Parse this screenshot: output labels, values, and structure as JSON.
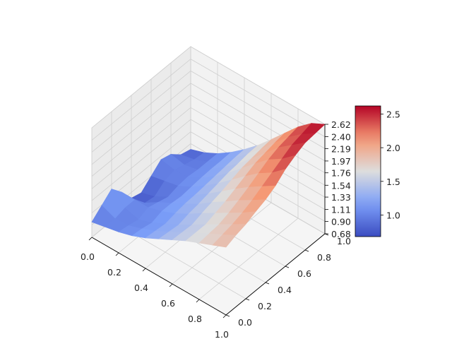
{
  "chart_data": {
    "type": "surface3d",
    "title": "",
    "xlabel": "",
    "ylabel": "",
    "zlabel": "",
    "colormap": "coolwarm",
    "xlim": [
      0.0,
      1.0
    ],
    "ylim": [
      0.0,
      1.0
    ],
    "zlim": [
      0.68,
      2.62
    ],
    "x_ticks": [
      "0.0",
      "0.2",
      "0.4",
      "0.6",
      "0.8",
      "1.0"
    ],
    "y_ticks": [
      "0.0",
      "0.2",
      "0.4",
      "0.6",
      "0.8",
      "1.0"
    ],
    "z_ticks": [
      "0.68",
      "0.90",
      "1.11",
      "1.33",
      "1.54",
      "1.76",
      "1.97",
      "2.19",
      "2.40",
      "2.62"
    ],
    "colorbar": {
      "min": 0.68,
      "max": 2.62,
      "ticks": [
        "1.0",
        "1.5",
        "2.0",
        "2.5"
      ]
    },
    "grid": true,
    "x": [
      0.0,
      0.1,
      0.2,
      0.3,
      0.4,
      0.5,
      0.6,
      0.7,
      0.8,
      0.9,
      1.0
    ],
    "y": [
      0.0,
      0.1,
      0.2,
      0.3,
      0.4,
      0.5,
      0.6,
      0.7,
      0.8,
      0.9,
      1.0
    ],
    "z": [
      [
        0.95,
        1.0,
        1.05,
        1.12,
        1.22,
        1.34,
        1.46,
        1.58,
        1.68,
        1.78,
        1.88
      ],
      [
        1.1,
        1.0,
        1.02,
        1.1,
        1.2,
        1.32,
        1.45,
        1.58,
        1.7,
        1.82,
        1.95
      ],
      [
        1.25,
        1.05,
        0.98,
        1.06,
        1.18,
        1.3,
        1.44,
        1.58,
        1.72,
        1.86,
        2.0
      ],
      [
        1.05,
        1.05,
        1.05,
        1.12,
        1.22,
        1.35,
        1.5,
        1.64,
        1.78,
        1.92,
        2.08
      ],
      [
        0.8,
        0.85,
        1.0,
        1.12,
        1.25,
        1.38,
        1.55,
        1.7,
        1.86,
        2.0,
        2.15
      ],
      [
        0.75,
        0.82,
        0.95,
        1.1,
        1.26,
        1.42,
        1.6,
        1.78,
        1.95,
        2.1,
        2.25
      ],
      [
        0.9,
        0.95,
        1.0,
        1.12,
        1.28,
        1.46,
        1.66,
        1.86,
        2.05,
        2.2,
        2.4
      ],
      [
        1.05,
        1.0,
        1.02,
        1.14,
        1.3,
        1.5,
        1.72,
        1.94,
        2.15,
        2.3,
        2.5
      ],
      [
        1.0,
        0.95,
        1.0,
        1.15,
        1.32,
        1.52,
        1.75,
        1.98,
        2.22,
        2.4,
        2.58
      ],
      [
        0.85,
        0.9,
        1.0,
        1.15,
        1.34,
        1.55,
        1.78,
        2.02,
        2.26,
        2.45,
        2.6
      ],
      [
        0.8,
        0.88,
        1.0,
        1.16,
        1.35,
        1.56,
        1.8,
        2.05,
        2.3,
        2.5,
        2.62
      ]
    ]
  }
}
